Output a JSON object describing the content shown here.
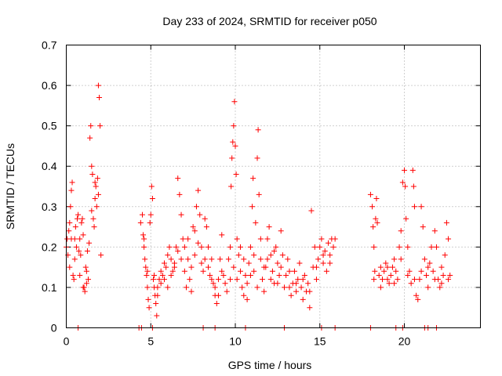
{
  "chart_data": {
    "type": "scatter",
    "title": "Day 233 of 2024, SRMTID for receiver p050",
    "xlabel": "GPS time / hours",
    "ylabel": "SRMTID / TECUs",
    "xlim": [
      0,
      24.5
    ],
    "ylim": [
      0,
      0.7
    ],
    "xticks": [
      0,
      5,
      10,
      15,
      20
    ],
    "xtick_labels": [
      "0",
      "5",
      "10",
      "15",
      "20"
    ],
    "yticks": [
      0,
      0.1,
      0.2,
      0.3,
      0.4,
      0.5,
      0.6,
      0.7
    ],
    "ytick_labels": [
      "0",
      "0.1",
      "0.2",
      "0.3",
      "0.4",
      "0.5",
      "0.6",
      "0.7"
    ],
    "grid": true,
    "marker": "+",
    "color": "#ff0000",
    "series": [
      {
        "name": "SRMTID",
        "points": [
          [
            0.0,
            0.2
          ],
          [
            0.05,
            0.22
          ],
          [
            0.1,
            0.18
          ],
          [
            0.15,
            0.24
          ],
          [
            0.2,
            0.26
          ],
          [
            0.25,
            0.3
          ],
          [
            0.3,
            0.34
          ],
          [
            0.35,
            0.36
          ],
          [
            0.4,
            0.13
          ],
          [
            0.45,
            0.12
          ],
          [
            0.5,
            0.22
          ],
          [
            0.55,
            0.25
          ],
          [
            0.6,
            0.2
          ],
          [
            0.65,
            0.27
          ],
          [
            0.7,
            0.28
          ],
          [
            0.75,
            0.19
          ],
          [
            0.8,
            0.22
          ],
          [
            0.85,
            0.18
          ],
          [
            0.9,
            0.26
          ],
          [
            0.95,
            0.27
          ],
          [
            1.0,
            0.23
          ],
          [
            1.05,
            0.1
          ],
          [
            1.1,
            0.09
          ],
          [
            1.15,
            0.15
          ],
          [
            1.2,
            0.14
          ],
          [
            1.25,
            0.19
          ],
          [
            1.3,
            0.12
          ],
          [
            1.35,
            0.21
          ],
          [
            1.4,
            0.47
          ],
          [
            1.45,
            0.5
          ],
          [
            1.5,
            0.4
          ],
          [
            1.55,
            0.38
          ],
          [
            1.6,
            0.27
          ],
          [
            1.65,
            0.25
          ],
          [
            1.7,
            0.32
          ],
          [
            1.75,
            0.35
          ],
          [
            1.8,
            0.3
          ],
          [
            1.85,
            0.37
          ],
          [
            1.9,
            0.6
          ],
          [
            1.95,
            0.57
          ],
          [
            2.0,
            0.5
          ],
          [
            2.05,
            0.18
          ],
          [
            0.2,
            0.15
          ],
          [
            0.3,
            0.22
          ],
          [
            0.5,
            0.17
          ],
          [
            0.8,
            0.13
          ],
          [
            1.0,
            0.1
          ],
          [
            1.2,
            0.11
          ],
          [
            1.5,
            0.29
          ],
          [
            1.7,
            0.36
          ],
          [
            1.9,
            0.33
          ],
          [
            4.4,
            0.26
          ],
          [
            4.5,
            0.28
          ],
          [
            4.55,
            0.23
          ],
          [
            4.6,
            0.2
          ],
          [
            4.65,
            0.17
          ],
          [
            4.7,
            0.15
          ],
          [
            4.75,
            0.13
          ],
          [
            4.8,
            0.1
          ],
          [
            4.85,
            0.07
          ],
          [
            4.9,
            0.05
          ],
          [
            4.95,
            0.26
          ],
          [
            5.0,
            0.28
          ],
          [
            5.05,
            0.35
          ],
          [
            5.1,
            0.32
          ],
          [
            5.15,
            0.12
          ],
          [
            5.2,
            0.1
          ],
          [
            5.25,
            0.08
          ],
          [
            5.3,
            0.06
          ],
          [
            5.35,
            0.03
          ],
          [
            5.4,
            0.1
          ],
          [
            5.5,
            0.12
          ],
          [
            5.6,
            0.14
          ],
          [
            5.7,
            0.13
          ],
          [
            5.8,
            0.16
          ],
          [
            5.9,
            0.15
          ],
          [
            6.0,
            0.18
          ],
          [
            6.1,
            0.2
          ],
          [
            6.2,
            0.17
          ],
          [
            6.3,
            0.14
          ],
          [
            6.4,
            0.15
          ],
          [
            6.5,
            0.2
          ],
          [
            6.6,
            0.37
          ],
          [
            6.7,
            0.33
          ],
          [
            6.8,
            0.28
          ],
          [
            6.9,
            0.22
          ],
          [
            7.0,
            0.14
          ],
          [
            7.1,
            0.1
          ],
          [
            7.2,
            0.17
          ],
          [
            7.3,
            0.12
          ],
          [
            7.4,
            0.09
          ],
          [
            7.5,
            0.25
          ],
          [
            7.6,
            0.24
          ],
          [
            7.7,
            0.3
          ],
          [
            7.8,
            0.34
          ],
          [
            7.9,
            0.28
          ],
          [
            8.0,
            0.16
          ],
          [
            8.1,
            0.14
          ],
          [
            8.2,
            0.27
          ],
          [
            8.3,
            0.25
          ],
          [
            8.4,
            0.2
          ],
          [
            8.5,
            0.13
          ],
          [
            8.6,
            0.17
          ],
          [
            8.7,
            0.11
          ],
          [
            8.8,
            0.08
          ],
          [
            8.9,
            0.06
          ],
          [
            9.0,
            0.12
          ],
          [
            9.1,
            0.17
          ],
          [
            9.2,
            0.23
          ],
          [
            9.3,
            0.13
          ],
          [
            9.4,
            0.11
          ],
          [
            9.5,
            0.09
          ],
          [
            4.6,
            0.22
          ],
          [
            4.8,
            0.14
          ],
          [
            5.2,
            0.13
          ],
          [
            5.4,
            0.08
          ],
          [
            5.6,
            0.11
          ],
          [
            5.8,
            0.12
          ],
          [
            6.0,
            0.1
          ],
          [
            6.2,
            0.13
          ],
          [
            6.4,
            0.16
          ],
          [
            6.6,
            0.19
          ],
          [
            6.8,
            0.17
          ],
          [
            7.0,
            0.2
          ],
          [
            7.2,
            0.22
          ],
          [
            7.4,
            0.15
          ],
          [
            7.6,
            0.18
          ],
          [
            7.8,
            0.21
          ],
          [
            8.0,
            0.2
          ],
          [
            8.2,
            0.17
          ],
          [
            8.4,
            0.15
          ],
          [
            8.6,
            0.12
          ],
          [
            8.8,
            0.1
          ],
          [
            9.0,
            0.08
          ],
          [
            9.2,
            0.14
          ],
          [
            9.6,
            0.17
          ],
          [
            9.7,
            0.2
          ],
          [
            9.75,
            0.35
          ],
          [
            9.8,
            0.42
          ],
          [
            9.85,
            0.46
          ],
          [
            9.9,
            0.5
          ],
          [
            9.95,
            0.56
          ],
          [
            10.0,
            0.45
          ],
          [
            10.05,
            0.38
          ],
          [
            10.1,
            0.22
          ],
          [
            10.2,
            0.18
          ],
          [
            10.3,
            0.14
          ],
          [
            10.4,
            0.1
          ],
          [
            10.5,
            0.08
          ],
          [
            10.6,
            0.13
          ],
          [
            10.7,
            0.07
          ],
          [
            10.8,
            0.16
          ],
          [
            10.9,
            0.2
          ],
          [
            11.0,
            0.3
          ],
          [
            11.05,
            0.37
          ],
          [
            11.1,
            0.14
          ],
          [
            11.2,
            0.26
          ],
          [
            11.3,
            0.42
          ],
          [
            11.35,
            0.49
          ],
          [
            11.4,
            0.33
          ],
          [
            11.5,
            0.17
          ],
          [
            11.6,
            0.12
          ],
          [
            11.7,
            0.09
          ],
          [
            11.8,
            0.15
          ],
          [
            11.9,
            0.22
          ],
          [
            12.0,
            0.25
          ],
          [
            12.1,
            0.18
          ],
          [
            12.2,
            0.14
          ],
          [
            12.3,
            0.11
          ],
          [
            12.4,
            0.2
          ],
          [
            12.5,
            0.16
          ],
          [
            12.6,
            0.13
          ],
          [
            12.7,
            0.24
          ],
          [
            12.8,
            0.18
          ],
          [
            12.9,
            0.1
          ],
          [
            9.7,
            0.12
          ],
          [
            9.9,
            0.15
          ],
          [
            10.1,
            0.12
          ],
          [
            10.3,
            0.2
          ],
          [
            10.5,
            0.17
          ],
          [
            10.7,
            0.11
          ],
          [
            10.9,
            0.13
          ],
          [
            11.1,
            0.18
          ],
          [
            11.3,
            0.1
          ],
          [
            11.5,
            0.22
          ],
          [
            11.7,
            0.15
          ],
          [
            11.9,
            0.17
          ],
          [
            12.1,
            0.12
          ],
          [
            12.3,
            0.19
          ],
          [
            12.5,
            0.11
          ],
          [
            12.7,
            0.15
          ],
          [
            13.0,
            0.13
          ],
          [
            13.1,
            0.17
          ],
          [
            13.2,
            0.1
          ],
          [
            13.3,
            0.08
          ],
          [
            13.4,
            0.11
          ],
          [
            13.5,
            0.14
          ],
          [
            13.6,
            0.09
          ],
          [
            13.7,
            0.12
          ],
          [
            13.8,
            0.16
          ],
          [
            13.9,
            0.1
          ],
          [
            14.0,
            0.07
          ],
          [
            14.1,
            0.13
          ],
          [
            14.2,
            0.09
          ],
          [
            14.3,
            0.11
          ],
          [
            14.4,
            0.05
          ],
          [
            14.5,
            0.29
          ],
          [
            14.6,
            0.15
          ],
          [
            14.7,
            0.2
          ],
          [
            14.8,
            0.12
          ],
          [
            14.9,
            0.17
          ],
          [
            15.0,
            0.2
          ],
          [
            15.1,
            0.22
          ],
          [
            15.2,
            0.16
          ],
          [
            15.3,
            0.19
          ],
          [
            15.4,
            0.14
          ],
          [
            15.5,
            0.21
          ],
          [
            15.6,
            0.18
          ],
          [
            15.7,
            0.22
          ],
          [
            15.8,
            0.2
          ],
          [
            15.9,
            0.22
          ],
          [
            13.2,
            0.14
          ],
          [
            13.6,
            0.11
          ],
          [
            14.0,
            0.12
          ],
          [
            14.4,
            0.09
          ],
          [
            14.8,
            0.15
          ],
          [
            15.2,
            0.18
          ],
          [
            15.6,
            0.16
          ],
          [
            18.0,
            0.33
          ],
          [
            18.1,
            0.3
          ],
          [
            18.15,
            0.25
          ],
          [
            18.2,
            0.2
          ],
          [
            18.25,
            0.14
          ],
          [
            18.3,
            0.27
          ],
          [
            18.35,
            0.32
          ],
          [
            18.4,
            0.26
          ],
          [
            18.5,
            0.13
          ],
          [
            18.6,
            0.15
          ],
          [
            18.7,
            0.12
          ],
          [
            18.8,
            0.14
          ],
          [
            18.9,
            0.16
          ],
          [
            19.0,
            0.12
          ],
          [
            19.1,
            0.11
          ],
          [
            19.2,
            0.13
          ],
          [
            19.3,
            0.15
          ],
          [
            19.4,
            0.17
          ],
          [
            19.5,
            0.14
          ],
          [
            19.6,
            0.12
          ],
          [
            19.7,
            0.2
          ],
          [
            19.8,
            0.24
          ],
          [
            19.9,
            0.36
          ],
          [
            20.0,
            0.39
          ],
          [
            20.05,
            0.35
          ],
          [
            20.1,
            0.27
          ],
          [
            20.2,
            0.2
          ],
          [
            20.3,
            0.14
          ],
          [
            20.4,
            0.11
          ],
          [
            20.5,
            0.39
          ],
          [
            20.55,
            0.35
          ],
          [
            20.6,
            0.3
          ],
          [
            20.7,
            0.08
          ],
          [
            20.8,
            0.07
          ],
          [
            20.9,
            0.12
          ],
          [
            21.0,
            0.3
          ],
          [
            21.1,
            0.25
          ],
          [
            21.2,
            0.17
          ],
          [
            21.3,
            0.13
          ],
          [
            21.4,
            0.1
          ],
          [
            21.5,
            0.16
          ],
          [
            21.6,
            0.2
          ],
          [
            21.7,
            0.14
          ],
          [
            21.8,
            0.24
          ],
          [
            21.9,
            0.2
          ],
          [
            22.0,
            0.12
          ],
          [
            22.1,
            0.1
          ],
          [
            22.2,
            0.15
          ],
          [
            22.3,
            0.13
          ],
          [
            22.4,
            0.18
          ],
          [
            22.5,
            0.26
          ],
          [
            22.6,
            0.22
          ],
          [
            22.7,
            0.13
          ],
          [
            18.2,
            0.12
          ],
          [
            18.6,
            0.1
          ],
          [
            19.0,
            0.15
          ],
          [
            19.4,
            0.11
          ],
          [
            19.8,
            0.17
          ],
          [
            20.2,
            0.13
          ],
          [
            20.6,
            0.12
          ],
          [
            21.0,
            0.14
          ],
          [
            21.4,
            0.15
          ],
          [
            21.8,
            0.12
          ],
          [
            22.2,
            0.11
          ],
          [
            22.6,
            0.12
          ],
          [
            0.7,
            0.0
          ],
          [
            4.3,
            0.0
          ],
          [
            4.45,
            0.0
          ],
          [
            5.1,
            0.0
          ],
          [
            8.1,
            0.0
          ],
          [
            8.8,
            0.0
          ],
          [
            10.6,
            0.0
          ],
          [
            12.9,
            0.0
          ],
          [
            15.1,
            0.0
          ],
          [
            15.9,
            0.0
          ],
          [
            18.0,
            0.0
          ],
          [
            19.5,
            0.0
          ],
          [
            19.9,
            0.0
          ],
          [
            21.2,
            0.0
          ],
          [
            21.4,
            0.0
          ],
          [
            21.9,
            0.0
          ]
        ]
      }
    ]
  }
}
